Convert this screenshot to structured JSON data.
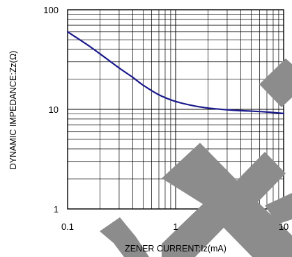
{
  "chart_data": {
    "type": "line",
    "title": "",
    "xlabel": "ZENER CURRENT:Iz(mA)",
    "ylabel": "DYNAMIC IMPEDANCE:Zz(Ω)",
    "x_scale": "log",
    "y_scale": "log",
    "xlim": [
      0.1,
      10
    ],
    "ylim": [
      1,
      100
    ],
    "grid": true,
    "x_ticks": [
      {
        "value": 0.1,
        "label": "0.1"
      },
      {
        "value": 1,
        "label": "1"
      },
      {
        "value": 10,
        "label": "10"
      }
    ],
    "y_ticks": [
      {
        "value": 1,
        "label": "1"
      },
      {
        "value": 10,
        "label": "10"
      },
      {
        "value": 100,
        "label": "100"
      }
    ],
    "series": [
      {
        "x": [
          0.1,
          0.15,
          0.2,
          0.3,
          0.4,
          0.5,
          0.7,
          1.0,
          1.5,
          2.0,
          3.0,
          4.0,
          5.0,
          7.0,
          10.0
        ],
        "y": [
          60,
          45,
          36,
          26,
          21,
          17.5,
          14,
          12,
          10.8,
          10.3,
          9.9,
          9.7,
          9.6,
          9.4,
          9.1
        ]
      }
    ],
    "colors": {
      "line": "#1a1a8c",
      "grid": "#000000",
      "watermark": "#8c8c8c"
    }
  }
}
